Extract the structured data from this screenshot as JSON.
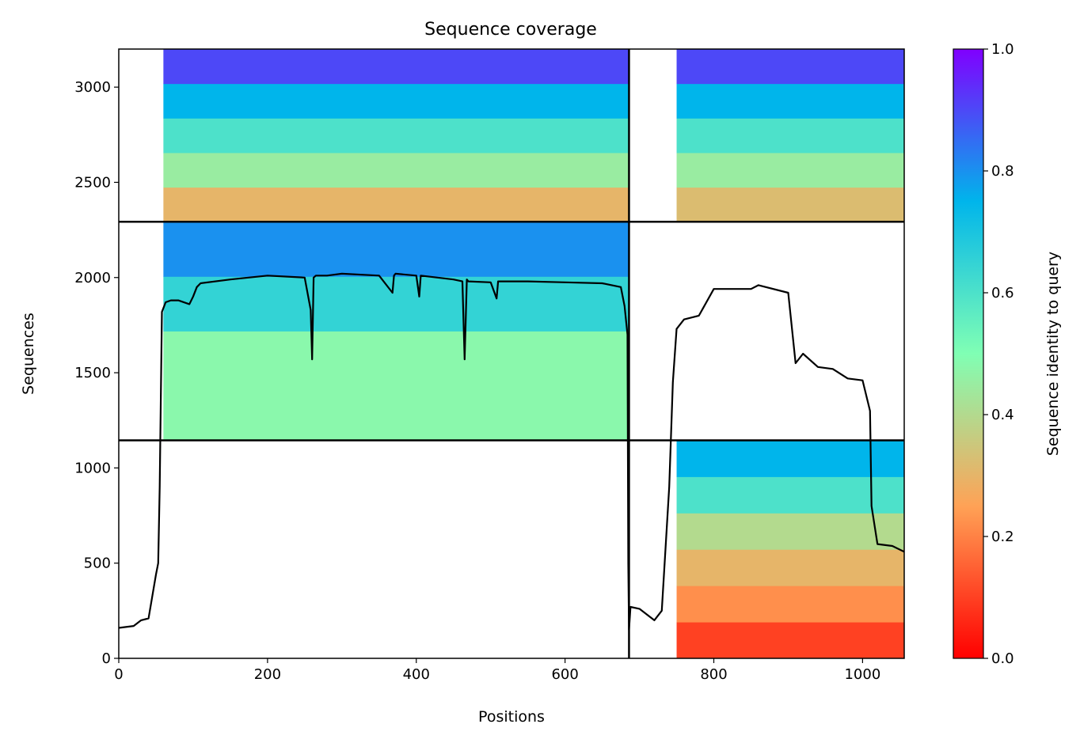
{
  "chart_data": {
    "type": "heatmap",
    "title": "Sequence coverage",
    "xlabel": "Positions",
    "ylabel": "Sequences",
    "xlim": [
      0,
      1056
    ],
    "ylim": [
      0,
      3200
    ],
    "xticks": [
      0,
      200,
      400,
      600,
      800,
      1000
    ],
    "yticks": [
      0,
      500,
      1000,
      1500,
      2000,
      2500,
      3000
    ],
    "colorbar": {
      "label": "Sequence identity to query",
      "range": [
        0.0,
        1.0
      ],
      "ticks": [
        0.0,
        0.2,
        0.4,
        0.6,
        0.8,
        1.0
      ],
      "colormap": "rainbow_r",
      "stops": [
        "#ff0000",
        "#ffa256",
        "#80ffb4",
        "#00b5eb",
        "#8000ff"
      ]
    },
    "divider_lines": {
      "vertical_x": [
        686
      ],
      "horizontal_y": [
        1145,
        2293
      ]
    },
    "blocks": [
      {
        "region": "block-1-left",
        "x": [
          0,
          686
        ],
        "y": [
          2293,
          3200
        ],
        "identity_bottom_to_top": [
          0.3,
          0.45,
          0.6,
          0.75,
          0.9
        ],
        "coverage_start_x": 60
      },
      {
        "region": "block-1-right",
        "x": [
          686,
          1056
        ],
        "y": [
          2293,
          3200
        ],
        "identity_bottom_to_top": [
          0.32,
          0.45,
          0.6,
          0.75,
          0.9
        ],
        "coverage_start_x": 750
      },
      {
        "region": "block-2-left",
        "x": [
          0,
          686
        ],
        "y": [
          1145,
          2293
        ],
        "identity_bottom_to_top": [
          0.48,
          0.48,
          0.65,
          0.8
        ],
        "coverage_start_x": 60
      },
      {
        "region": "block-3-right",
        "x": [
          686,
          1056
        ],
        "y": [
          0,
          1145
        ],
        "identity_bottom_to_top": [
          0.1,
          0.22,
          0.3,
          0.4,
          0.6,
          0.75
        ],
        "coverage_start_x": 750
      }
    ],
    "coverage_line": {
      "x": [
        0,
        20,
        30,
        40,
        50,
        53,
        55,
        58,
        60,
        63,
        70,
        80,
        95,
        100,
        105,
        110,
        150,
        200,
        250,
        258,
        260,
        262,
        265,
        280,
        300,
        350,
        368,
        370,
        372,
        400,
        404,
        406,
        450,
        462,
        465,
        468,
        470,
        500,
        508,
        510,
        550,
        600,
        650,
        675,
        680,
        684,
        685,
        686,
        688,
        700,
        720,
        730,
        740,
        745,
        750,
        760,
        780,
        800,
        850,
        860,
        900,
        910,
        920,
        940,
        960,
        980,
        1000,
        1010,
        1012,
        1020,
        1040,
        1056
      ],
      "y": [
        160,
        170,
        200,
        210,
        440,
        500,
        900,
        1820,
        1840,
        1870,
        1880,
        1880,
        1860,
        1900,
        1950,
        1970,
        1990,
        2010,
        2000,
        1830,
        1570,
        2000,
        2010,
        2010,
        2020,
        2010,
        1920,
        2010,
        2020,
        2010,
        1900,
        2010,
        1990,
        1980,
        1570,
        1990,
        1980,
        1975,
        1890,
        1980,
        1980,
        1975,
        1970,
        1950,
        1850,
        1700,
        500,
        150,
        270,
        260,
        200,
        250,
        900,
        1450,
        1730,
        1780,
        1800,
        1940,
        1940,
        1960,
        1920,
        1550,
        1600,
        1530,
        1520,
        1470,
        1460,
        1300,
        800,
        600,
        590,
        560
      ]
    }
  }
}
